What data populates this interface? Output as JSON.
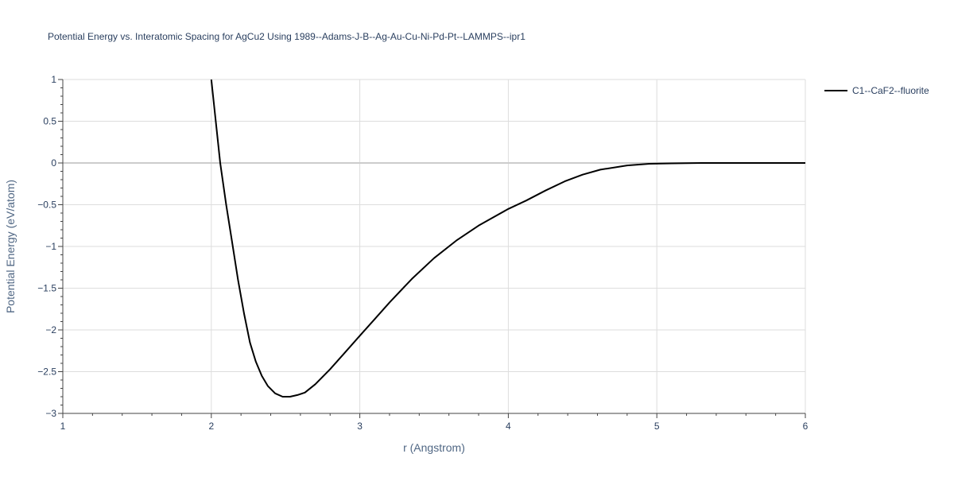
{
  "chart_data": {
    "type": "line",
    "title": "Potential Energy vs. Interatomic Spacing for AgCu2 Using 1989--Adams-J-B--Ag-Au-Cu-Ni-Pd-Pt--LAMMPS--ipr1",
    "xlabel": "r (Angstrom)",
    "ylabel": "Potential Energy (eV/atom)",
    "xlim": [
      1,
      6
    ],
    "ylim": [
      -3,
      1
    ],
    "xticks": [
      1,
      2,
      3,
      4,
      5,
      6
    ],
    "xtick_labels": [
      "1",
      "2",
      "3",
      "4",
      "5",
      "6"
    ],
    "yticks": [
      -3,
      -2.5,
      -2,
      -1.5,
      -1,
      -0.5,
      0,
      0.5,
      1
    ],
    "ytick_labels": [
      "−3",
      "−2.5",
      "−2",
      "−1.5",
      "−1",
      "−0.5",
      "0",
      "0.5",
      "1"
    ],
    "grid": true,
    "legend_position": "top-right",
    "series": [
      {
        "name": "C1--CaF2--fluorite",
        "color": "#000000",
        "x": [
          2.0,
          2.03,
          2.06,
          2.1,
          2.14,
          2.18,
          2.22,
          2.26,
          2.3,
          2.34,
          2.38,
          2.43,
          2.48,
          2.53,
          2.58,
          2.63,
          2.7,
          2.8,
          2.9,
          3.0,
          3.1,
          3.2,
          3.35,
          3.5,
          3.65,
          3.8,
          3.9,
          4.0,
          4.12,
          4.25,
          4.38,
          4.5,
          4.62,
          4.8,
          4.95,
          5.1,
          5.3,
          5.5,
          5.75,
          6.0
        ],
        "y": [
          1.0,
          0.5,
          0.0,
          -0.5,
          -0.95,
          -1.4,
          -1.8,
          -2.15,
          -2.38,
          -2.55,
          -2.67,
          -2.76,
          -2.8,
          -2.8,
          -2.78,
          -2.75,
          -2.65,
          -2.47,
          -2.27,
          -2.07,
          -1.87,
          -1.67,
          -1.39,
          -1.14,
          -0.93,
          -0.75,
          -0.65,
          -0.55,
          -0.45,
          -0.33,
          -0.22,
          -0.14,
          -0.08,
          -0.03,
          -0.01,
          -0.005,
          0.0,
          0.0,
          0.0,
          0.0
        ]
      }
    ]
  }
}
